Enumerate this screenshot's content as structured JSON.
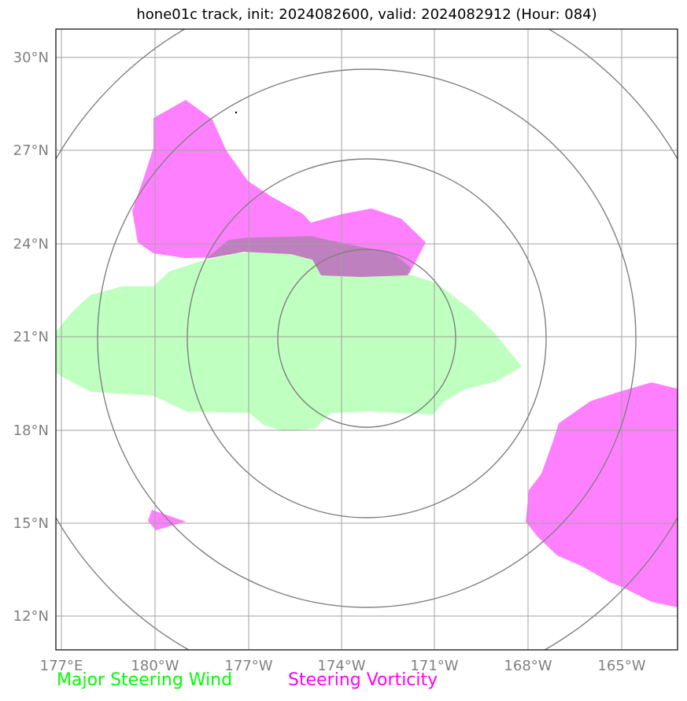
{
  "title": "hone01c track, init: 2024082600, valid: 2024082912 (Hour: 084)",
  "map": {
    "lon_labels": [
      "177°E",
      "180°W",
      "177°W",
      "174°W",
      "171°W",
      "168°W",
      "165°W"
    ],
    "lat_labels": [
      "30°N",
      "27°N",
      "24°N",
      "21°N",
      "18°N",
      "15°N",
      "12°N"
    ]
  },
  "legend": {
    "items": [
      {
        "label": "Major Steering Wind",
        "color": "#00ff00"
      },
      {
        "label": "Steering Vorticity",
        "color": "#ff00ff"
      }
    ]
  },
  "colors": {
    "wind_fill": "#bfffbf",
    "vorticity_fill": "#ff80ff",
    "overlap_fill": "#bf80bf",
    "grid": "#a0a0a0",
    "rings": "#808080"
  }
}
